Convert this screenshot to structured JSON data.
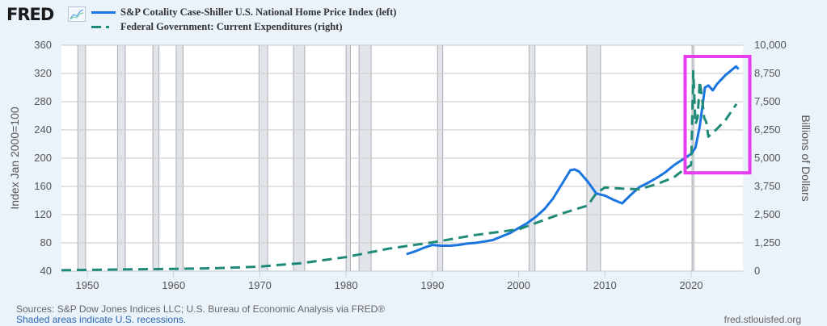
{
  "header": {
    "logo_text": "FRED",
    "logo_icon": "line-chart-icon"
  },
  "legend": [
    {
      "label": "S&P Cotality Case-Shiller U.S. National Home Price Index (left)",
      "style": "solid",
      "color": "#1a75e0"
    },
    {
      "label": "Federal Government: Current Expenditures (right)",
      "style": "dashed",
      "color": "#1f8a78"
    }
  ],
  "footer": {
    "sources": "Sources: S&P Dow Jones Indices LLC; U.S. Bureau of Economic Analysis via FRED®",
    "recessions_note": "Shaded areas indicate U.S. recessions.",
    "url": "fred.stlouisfed.org"
  },
  "highlight": {
    "color": "#e83cf0",
    "x_range": [
      2019.3,
      2026.8
    ],
    "right_y_range": [
      4350,
      9500
    ]
  },
  "chart_data": {
    "type": "line",
    "title": "",
    "xlabel": "",
    "ylabel": "Index Jan 2000=100",
    "ylabel_right": "Billions of Dollars",
    "xlim": [
      1947,
      2026
    ],
    "ylim": [
      40,
      360
    ],
    "ylim_right": [
      0,
      10000
    ],
    "grid": true,
    "legend_position": "top-left",
    "x_ticks": [
      1950,
      1960,
      1970,
      1980,
      1990,
      2000,
      2010,
      2020
    ],
    "x_tick_labels": [
      "1950",
      "1960",
      "1970",
      "1980",
      "1990",
      "2000",
      "2010",
      "2020"
    ],
    "y_ticks": [
      40,
      80,
      120,
      160,
      200,
      240,
      280,
      320,
      360
    ],
    "y_tick_labels": [
      "40",
      "80",
      "120",
      "160",
      "200",
      "240",
      "280",
      "320",
      "360"
    ],
    "y_ticks_right": [
      0,
      1250,
      2500,
      3750,
      5000,
      6250,
      7500,
      8750,
      10000
    ],
    "y_tick_labels_right": [
      "0",
      "1,250",
      "2,500",
      "3,750",
      "5,000",
      "6,250",
      "7,500",
      "8,750",
      "10,000"
    ],
    "recessions": [
      [
        1948.9,
        1949.8
      ],
      [
        1953.5,
        1954.4
      ],
      [
        1957.6,
        1958.3
      ],
      [
        1960.3,
        1961.1
      ],
      [
        1969.9,
        1970.9
      ],
      [
        1973.9,
        1975.2
      ],
      [
        1980.0,
        1980.5
      ],
      [
        1981.5,
        1982.9
      ],
      [
        1990.6,
        1991.2
      ],
      [
        2001.2,
        2001.9
      ],
      [
        2007.9,
        2009.5
      ],
      [
        2020.1,
        2020.3
      ]
    ],
    "series": [
      {
        "name": "S&P Cotality Case-Shiller U.S. National Home Price Index (left)",
        "axis": "left",
        "style": "solid",
        "color": "#1a75e0",
        "x": [
          1987,
          1988,
          1989,
          1990,
          1991,
          1992,
          1993,
          1994,
          1995,
          1996,
          1997,
          1998,
          1999,
          2000,
          2001,
          2002,
          2003,
          2004,
          2005,
          2006,
          2006.5,
          2007,
          2008,
          2009,
          2010,
          2011,
          2012,
          2013,
          2014,
          2015,
          2016,
          2017,
          2018,
          2019,
          2020,
          2020.5,
          2021,
          2021.6,
          2022.0,
          2022.5,
          2023,
          2024,
          2025.2,
          2025.5
        ],
        "values": [
          64,
          68,
          73,
          77,
          76,
          76,
          77,
          79,
          80,
          82,
          84,
          89,
          94,
          101,
          108,
          117,
          128,
          143,
          163,
          183,
          184,
          181,
          167,
          150,
          147,
          141,
          136,
          148,
          159,
          165,
          172,
          180,
          190,
          198,
          206,
          215,
          245,
          300,
          303,
          296,
          305,
          318,
          330,
          326
        ]
      },
      {
        "name": "Federal Government: Current Expenditures (right)",
        "axis": "right",
        "style": "dashed",
        "color": "#1f8a78",
        "x": [
          1947,
          1950,
          1955,
          1960,
          1965,
          1970,
          1975,
          1980,
          1985,
          1990,
          1995,
          2000,
          2005,
          2008,
          2009,
          2010,
          2012,
          2014,
          2016,
          2018,
          2019,
          2020.0,
          2020.25,
          2020.5,
          2020.75,
          2021.0,
          2021.25,
          2021.5,
          2021.75,
          2022.0,
          2023,
          2024,
          2025.25
        ],
        "values": [
          40,
          55,
          80,
          100,
          130,
          200,
          360,
          620,
          1000,
          1270,
          1600,
          1850,
          2550,
          2900,
          3450,
          3700,
          3650,
          3620,
          3850,
          4150,
          4450,
          4700,
          8850,
          6500,
          6800,
          8400,
          7700,
          6800,
          6600,
          5950,
          6300,
          6700,
          7400
        ]
      }
    ]
  }
}
